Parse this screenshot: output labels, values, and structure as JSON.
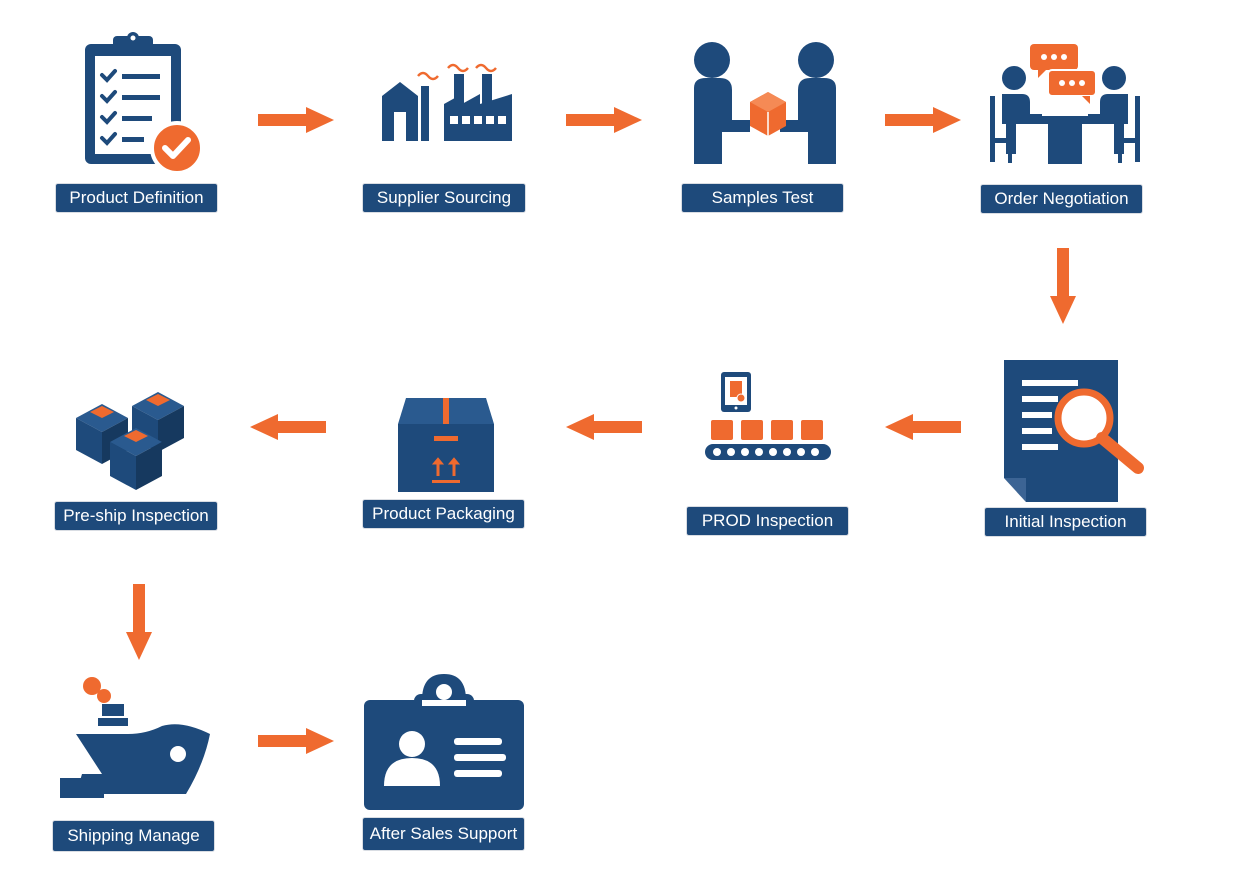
{
  "colors": {
    "navy": "#1e4a7b",
    "orange": "#ef6a2f",
    "background": "#ffffff"
  },
  "steps": [
    {
      "label": "Product Definition",
      "icon": "clipboard-check-icon"
    },
    {
      "label": "Supplier Sourcing",
      "icon": "factory-icon"
    },
    {
      "label": "Samples Test",
      "icon": "handover-box-icon"
    },
    {
      "label": "Order Negotiation",
      "icon": "meeting-chat-icon"
    },
    {
      "label": "Initial Inspection",
      "icon": "document-search-icon"
    },
    {
      "label": "PROD Inspection",
      "icon": "conveyor-tablet-icon"
    },
    {
      "label": "Product Packaging",
      "icon": "package-box-icon"
    },
    {
      "label": "Pre-ship Inspection",
      "icon": "boxes-stack-icon"
    },
    {
      "label": "Shipping Manage",
      "icon": "ship-icon"
    },
    {
      "label": "After Sales Support",
      "icon": "id-badge-icon"
    }
  ]
}
